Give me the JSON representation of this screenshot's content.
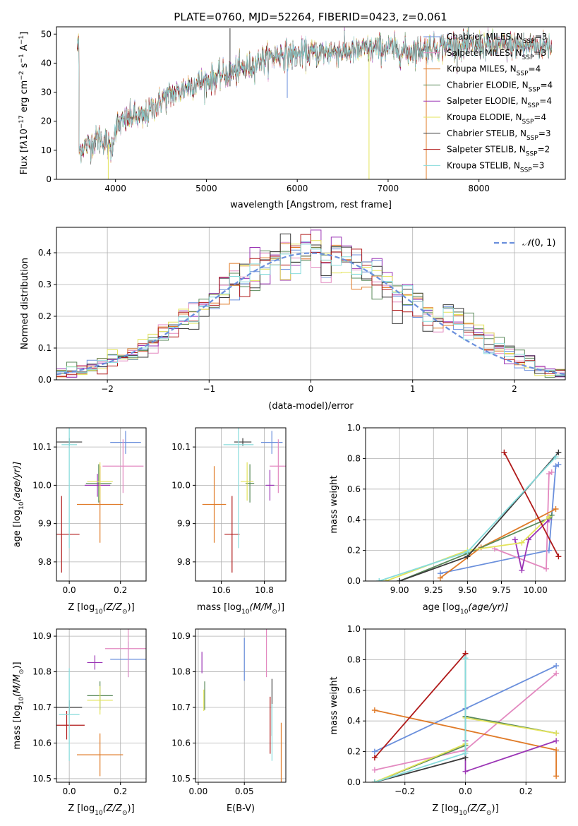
{
  "chart_data": [
    {
      "id": "spectrum",
      "type": "line",
      "title": "PLATE=0760, MJD=52264, FIBERID=0423, z=0.061",
      "xlabel": "wavelength [Angstrom, rest frame]",
      "ylabel_parts": [
        "Flux [f",
        "λ",
        "10",
        "−17",
        " erg cm",
        "−2",
        " s",
        "−1",
        " A",
        "−1",
        "]"
      ],
      "xlim": [
        3350,
        8950
      ],
      "ylim": [
        0,
        52.5
      ],
      "xticks": [
        4000,
        5000,
        6000,
        7000,
        8000
      ],
      "yticks": [
        0,
        10,
        20,
        30,
        40,
        50
      ],
      "grid": false,
      "legend_position": "top-right",
      "continuum": {
        "x": [
          3600,
          3700,
          3800,
          3900,
          3950,
          4000,
          4100,
          4200,
          4300,
          4400,
          4500,
          4600,
          4700,
          4800,
          4900,
          5000,
          5100,
          5200,
          5300,
          5400,
          5500,
          5600,
          5700,
          5800,
          5900,
          6000,
          6200,
          6400,
          6600,
          6800,
          7000,
          7200,
          7400,
          7600,
          7800,
          8000,
          8200,
          8400,
          8600,
          8800
        ],
        "y": [
          10,
          12,
          14,
          13,
          10,
          18,
          20,
          22,
          21,
          24,
          27,
          29,
          30,
          32,
          33,
          34,
          35,
          36,
          37,
          38,
          39,
          41,
          42,
          43,
          43,
          43,
          43.5,
          44,
          44,
          45,
          45,
          44,
          45,
          46,
          46,
          46,
          46,
          46,
          46,
          46
        ]
      },
      "series": [
        {
          "name": "Chabrier MILES, N",
          "sub": "SSP",
          "suffix": "=3",
          "color": "#6a8fdc"
        },
        {
          "name": "Salpeter MILES, N",
          "sub": "SSP",
          "suffix": "=3",
          "color": "#e389c0"
        },
        {
          "name": "Kroupa MILES, N",
          "sub": "SSP",
          "suffix": "=4",
          "color": "#e07b28"
        },
        {
          "name": "Chabrier ELODIE, N",
          "sub": "SSP",
          "suffix": "=4",
          "color": "#5a8a5a"
        },
        {
          "name": "Salpeter ELODIE, N",
          "sub": "SSP",
          "suffix": "=4",
          "color": "#9b35b5"
        },
        {
          "name": "Kroupa ELODIE, N",
          "sub": "SSP",
          "suffix": "=4",
          "color": "#e3e35a"
        },
        {
          "name": "Chabrier STELIB, N",
          "sub": "SSP",
          "suffix": "=3",
          "color": "#3a3a3a"
        },
        {
          "name": "Salpeter STELIB, N",
          "sub": "SSP",
          "suffix": "=2",
          "color": "#b01a1a"
        },
        {
          "name": "Kroupa STELIB, N",
          "sub": "SSP",
          "suffix": "=3",
          "color": "#87dcdc"
        }
      ],
      "spikes": [
        {
          "x": 3920,
          "y0": 0,
          "y1": 12,
          "color": "#e3e35a"
        },
        {
          "x": 5260,
          "y0": 32,
          "y1": 52,
          "color": "#3a3a3a"
        },
        {
          "x": 5890,
          "y0": 38,
          "y1": 28,
          "color": "#6a8fdc"
        },
        {
          "x": 6790,
          "y0": 44,
          "y1": 0,
          "color": "#e3e35a"
        },
        {
          "x": 7420,
          "y0": 42,
          "y1": 0,
          "color": "#e07b28"
        }
      ]
    },
    {
      "id": "residuals",
      "type": "histogram",
      "xlabel": "(data-model)/error",
      "ylabel": "Normed distribution",
      "xlim": [
        -2.5,
        2.5
      ],
      "ylim": [
        0,
        0.48
      ],
      "xticks": [
        -2,
        -1,
        0,
        1,
        2
      ],
      "xticklabels": [
        "−2",
        "−1",
        "0",
        "1",
        "2"
      ],
      "yticks": [
        0.0,
        0.1,
        0.2,
        0.3,
        0.4
      ],
      "yticklabels": [
        "0.0",
        "0.1",
        "0.2",
        "0.3",
        "0.4"
      ],
      "grid": true,
      "bin_edges_start": -2.5,
      "bin_width": 0.1,
      "legend": {
        "label_main": "𝒩",
        "label_rest": "(0, 1)",
        "position": "top-right",
        "color": "#6a8fdc"
      },
      "reference_curve": {
        "type": "gaussian",
        "mean": 0,
        "sigma": 1
      },
      "histogram_colors": [
        "#6a8fdc",
        "#e389c0",
        "#e07b28",
        "#5a8a5a",
        "#9b35b5",
        "#e3e35a",
        "#3a3a3a",
        "#b01a1a",
        "#87dcdc"
      ]
    },
    {
      "id": "age-vs-Z",
      "type": "errorbar",
      "xlabel_parts": [
        "Z [log",
        "10",
        "(Z/Z",
        "⊙",
        ")]"
      ],
      "ylabel_parts": [
        "age  [log",
        "10",
        "(age/yr)]"
      ],
      "xlim": [
        -0.05,
        0.3
      ],
      "ylim": [
        9.75,
        10.15
      ],
      "xticks": [
        0.0,
        0.2
      ],
      "xticklabels": [
        "0.0",
        "0.2"
      ],
      "yticks": [
        9.8,
        9.9,
        10.0,
        10.1
      ],
      "yticklabels": [
        "9.8",
        "9.9",
        "10.0",
        "10.1"
      ],
      "grid": true,
      "points": [
        {
          "color": "#6a8fdc",
          "x": 0.22,
          "y": 10.112,
          "xerr": 0.06,
          "yerr": 0.03
        },
        {
          "color": "#e389c0",
          "x": 0.21,
          "y": 10.05,
          "xerr": 0.08,
          "yerr": 0.07
        },
        {
          "color": "#e07b28",
          "x": 0.12,
          "y": 9.95,
          "xerr": 0.09,
          "yerr": 0.1
        },
        {
          "color": "#5a8a5a",
          "x": 0.115,
          "y": 10.005,
          "xerr": 0.05,
          "yerr": 0.05
        },
        {
          "color": "#9b35b5",
          "x": 0.11,
          "y": 10.0,
          "xerr": 0.05,
          "yerr": 0.03
        },
        {
          "color": "#e3e35a",
          "x": 0.12,
          "y": 10.01,
          "xerr": 0.05,
          "yerr": 0.05
        },
        {
          "color": "#3a3a3a",
          "x": 0.0,
          "y": 10.113,
          "xerr": 0.05,
          "yerr": 0.01
        },
        {
          "color": "#b01a1a",
          "x": -0.03,
          "y": 9.872,
          "xerr": 0.07,
          "yerr": 0.1
        },
        {
          "color": "#87dcdc",
          "x": 0.0,
          "y": 10.106,
          "xerr": 0.03,
          "yerr": 0.27
        }
      ]
    },
    {
      "id": "age-vs-mass",
      "type": "errorbar",
      "xlabel_parts": [
        "mass [log",
        "10",
        "(M/M",
        "⊙",
        ")]"
      ],
      "xlim": [
        10.48,
        10.9
      ],
      "ylim": [
        9.75,
        10.15
      ],
      "xticks": [
        10.6,
        10.8
      ],
      "xticklabels": [
        "10.6",
        "10.8"
      ],
      "yticks": [
        9.8,
        9.9,
        10.0,
        10.1
      ],
      "yticklabels": [
        "9.8",
        "9.9",
        "10.0",
        "10.1"
      ],
      "grid": true,
      "points": [
        {
          "color": "#6a8fdc",
          "x": 10.835,
          "y": 10.112,
          "xerr": 0.05,
          "yerr": 0.03
        },
        {
          "color": "#e389c0",
          "x": 10.865,
          "y": 10.05,
          "xerr": 0.04,
          "yerr": 0.07
        },
        {
          "color": "#e07b28",
          "x": 10.567,
          "y": 9.95,
          "xerr": 0.055,
          "yerr": 0.1
        },
        {
          "color": "#5a8a5a",
          "x": 10.733,
          "y": 10.005,
          "xerr": 0.02,
          "yerr": 0.05
        },
        {
          "color": "#9b35b5",
          "x": 10.826,
          "y": 10.0,
          "xerr": 0.02,
          "yerr": 0.04
        },
        {
          "color": "#e3e35a",
          "x": 10.72,
          "y": 10.01,
          "xerr": 0.03,
          "yerr": 0.05
        },
        {
          "color": "#3a3a3a",
          "x": 10.7,
          "y": 10.113,
          "xerr": 0.04,
          "yerr": 0.01
        },
        {
          "color": "#b01a1a",
          "x": 10.65,
          "y": 9.872,
          "xerr": 0.035,
          "yerr": 0.1
        },
        {
          "color": "#87dcdc",
          "x": 10.68,
          "y": 10.106,
          "xerr": 0.07,
          "yerr": 0.27
        }
      ]
    },
    {
      "id": "massweight-vs-age",
      "type": "line",
      "xlabel_parts": [
        "age  [log",
        "10",
        "(age/yr)]"
      ],
      "ylabel": "mass weight",
      "xlim": [
        8.75,
        10.22
      ],
      "ylim": [
        0,
        1
      ],
      "xticks": [
        9.0,
        9.25,
        9.5,
        9.75,
        10.0
      ],
      "xticklabels": [
        "9.00",
        "9.25",
        "9.50",
        "9.75",
        "10.00"
      ],
      "yticks": [
        0,
        0.2,
        0.4,
        0.6,
        0.8,
        1.0
      ],
      "yticklabels": [
        "0.0",
        "0.2",
        "0.4",
        "0.6",
        "0.8",
        "1.0"
      ],
      "grid": true,
      "series": [
        {
          "color": "#6a8fdc",
          "x": [
            9.3,
            10.1,
            10.15,
            10.17
          ],
          "y": [
            0.05,
            0.2,
            0.75,
            0.76
          ]
        },
        {
          "color": "#e389c0",
          "x": [
            9.7,
            10.08,
            10.1,
            10.12
          ],
          "y": [
            0.21,
            0.08,
            0.7,
            0.71
          ]
        },
        {
          "color": "#e07b28",
          "x": [
            9.3,
            9.6,
            10.15
          ],
          "y": [
            0.02,
            0.22,
            0.47
          ]
        },
        {
          "color": "#5a8a5a",
          "x": [
            9.0,
            9.5,
            10.1,
            10.12
          ],
          "y": [
            0.0,
            0.18,
            0.41,
            0.43
          ]
        },
        {
          "color": "#9b35b5",
          "x": [
            9.85,
            9.9,
            9.95,
            10.1
          ],
          "y": [
            0.27,
            0.07,
            0.27,
            0.4
          ]
        },
        {
          "color": "#e3e35a",
          "x": [
            8.9,
            9.5,
            9.9,
            10.1
          ],
          "y": [
            0.0,
            0.2,
            0.25,
            0.42
          ]
        },
        {
          "color": "#3a3a3a",
          "x": [
            9.0,
            9.5,
            10.17
          ],
          "y": [
            0.0,
            0.16,
            0.84
          ]
        },
        {
          "color": "#b01a1a",
          "x": [
            9.77,
            10.17
          ],
          "y": [
            0.84,
            0.16
          ]
        },
        {
          "color": "#87dcdc",
          "x": [
            8.85,
            9.5,
            10.15
          ],
          "y": [
            0.0,
            0.19,
            0.81
          ]
        }
      ]
    },
    {
      "id": "mass-vs-Z",
      "type": "errorbar",
      "xlabel_parts": [
        "Z [log",
        "10",
        "(Z/Z",
        "⊙",
        ")]"
      ],
      "ylabel_parts": [
        "mass [log",
        "10",
        "(M/M",
        "⊙",
        ")]"
      ],
      "xlim": [
        -0.05,
        0.3
      ],
      "ylim": [
        10.49,
        10.92
      ],
      "xticks": [
        0.0,
        0.2
      ],
      "xticklabels": [
        "0.0",
        "0.2"
      ],
      "yticks": [
        10.5,
        10.6,
        10.7,
        10.8,
        10.9
      ],
      "yticklabels": [
        "10.5",
        "10.6",
        "10.7",
        "10.8",
        "10.9"
      ],
      "grid": true,
      "points": [
        {
          "color": "#6a8fdc",
          "x": 0.23,
          "y": 10.835,
          "xerr": 0.07,
          "yerr": 0.05
        },
        {
          "color": "#e389c0",
          "x": 0.23,
          "y": 10.865,
          "xerr": 0.09,
          "yerr": 0.08
        },
        {
          "color": "#e07b28",
          "x": 0.12,
          "y": 10.567,
          "xerr": 0.09,
          "yerr": 0.06
        },
        {
          "color": "#5a8a5a",
          "x": 0.12,
          "y": 10.733,
          "xerr": 0.05,
          "yerr": 0.04
        },
        {
          "color": "#9b35b5",
          "x": 0.1,
          "y": 10.826,
          "xerr": 0.03,
          "yerr": 0.02
        },
        {
          "color": "#e3e35a",
          "x": 0.12,
          "y": 10.72,
          "xerr": 0.05,
          "yerr": 0.04
        },
        {
          "color": "#3a3a3a",
          "x": 0.0,
          "y": 10.7,
          "xerr": 0.05,
          "yerr": 0.02
        },
        {
          "color": "#b01a1a",
          "x": -0.01,
          "y": 10.65,
          "xerr": 0.07,
          "yerr": 0.04
        },
        {
          "color": "#87dcdc",
          "x": 0.0,
          "y": 10.68,
          "xerr": 0.04,
          "yerr": 0.13
        }
      ]
    },
    {
      "id": "mass-vs-EBV",
      "type": "errorbar",
      "xlabel": "E(B-V)",
      "xlim": [
        -0.003,
        0.095
      ],
      "ylim": [
        10.49,
        10.92
      ],
      "xticks": [
        0.0,
        0.05
      ],
      "xticklabels": [
        "0.00",
        "0.05"
      ],
      "yticks": [
        10.5,
        10.6,
        10.7,
        10.8,
        10.9
      ],
      "yticklabels": [
        "10.5",
        "10.6",
        "10.7",
        "10.8",
        "10.9"
      ],
      "grid": true,
      "points": [
        {
          "color": "#6a8fdc",
          "x": 0.05,
          "y": 10.835,
          "xerr": 0.0,
          "yerr": 0.06
        },
        {
          "color": "#e389c0",
          "x": 0.074,
          "y": 10.865,
          "xerr": 0.0,
          "yerr": 0.08
        },
        {
          "color": "#e07b28",
          "x": 0.09,
          "y": 10.567,
          "xerr": 0.0,
          "yerr": 0.09
        },
        {
          "color": "#5a8a5a",
          "x": 0.007,
          "y": 10.733,
          "xerr": 0.0,
          "yerr": 0.04
        },
        {
          "color": "#9b35b5",
          "x": 0.004,
          "y": 10.826,
          "xerr": 0.0,
          "yerr": 0.03
        },
        {
          "color": "#e3e35a",
          "x": 0.006,
          "y": 10.72,
          "xerr": 0.0,
          "yerr": 0.03
        },
        {
          "color": "#3a3a3a",
          "x": 0.08,
          "y": 10.7,
          "xerr": 0.0,
          "yerr": 0.08
        },
        {
          "color": "#b01a1a",
          "x": 0.078,
          "y": 10.65,
          "xerr": 0.0,
          "yerr": 0.08
        },
        {
          "color": "#87dcdc",
          "x": 0.08,
          "y": 10.63,
          "xerr": 0.0,
          "yerr": 0.08
        }
      ]
    },
    {
      "id": "massweight-vs-Z",
      "type": "line",
      "xlabel_parts": [
        "Z [log",
        "10",
        "(Z/Z",
        "⊙",
        ")]"
      ],
      "ylabel": "mass weight",
      "xlim": [
        -0.33,
        0.33
      ],
      "ylim": [
        0,
        1
      ],
      "xticks": [
        -0.2,
        0.0,
        0.2
      ],
      "xticklabels": [
        "−0.2",
        "0.0",
        "0.2"
      ],
      "yticks": [
        0,
        0.2,
        0.4,
        0.6,
        0.8,
        1.0
      ],
      "yticklabels": [
        "0.0",
        "0.2",
        "0.4",
        "0.6",
        "0.8",
        "1.0"
      ],
      "grid": true,
      "series": [
        {
          "color": "#6a8fdc",
          "x": [
            -0.3,
            0.0,
            0.3
          ],
          "y": [
            0.2,
            0.48,
            0.76
          ]
        },
        {
          "color": "#e389c0",
          "x": [
            -0.3,
            0.0,
            0.3
          ],
          "y": [
            0.08,
            0.21,
            0.71
          ]
        },
        {
          "color": "#e07b28",
          "x": [
            -0.3,
            0.3,
            0.3
          ],
          "y": [
            0.47,
            0.21,
            0.04
          ]
        },
        {
          "color": "#5a8a5a",
          "x": [
            -0.3,
            0.0,
            0.0,
            0.3
          ],
          "y": [
            0.0,
            0.24,
            0.43,
            0.32
          ]
        },
        {
          "color": "#9b35b5",
          "x": [
            0.0,
            0.0,
            0.3
          ],
          "y": [
            0.27,
            0.07,
            0.27
          ]
        },
        {
          "color": "#e3e35a",
          "x": [
            -0.3,
            0.0,
            0.0,
            0.3
          ],
          "y": [
            0.0,
            0.25,
            0.42,
            0.32
          ]
        },
        {
          "color": "#3a3a3a",
          "x": [
            -0.3,
            0.0,
            0.0
          ],
          "y": [
            0.0,
            0.16,
            0.84
          ]
        },
        {
          "color": "#b01a1a",
          "x": [
            -0.3,
            0.0
          ],
          "y": [
            0.16,
            0.84
          ]
        },
        {
          "color": "#87dcdc",
          "x": [
            -0.3,
            0.0,
            0.0
          ],
          "y": [
            0.0,
            0.19,
            0.81
          ]
        }
      ]
    }
  ]
}
